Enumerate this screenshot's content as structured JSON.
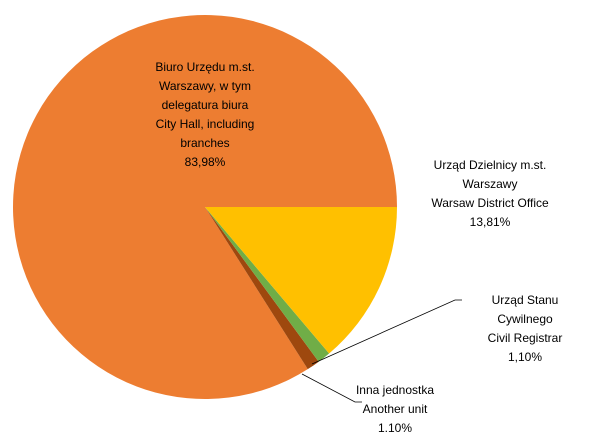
{
  "chart_data": {
    "type": "pie",
    "categories": [
      "Urząd Dzielnicy m.st.\nWarszawy\nWarsaw District Office",
      "Urząd Stanu Cywilnego\nCivil Registrar",
      "Inna jednostka\nAnother unit",
      "Biuro Urzędu m.st.\nWarszawy, w tym\ndelegatura biura\nCity Hall, including\nbranches"
    ],
    "values": [
      13.81,
      1.1,
      1.1,
      83.98
    ],
    "value_labels": [
      "13,81%",
      "1,10%",
      "1.10%",
      "83,98%"
    ],
    "colors": [
      "#FFC000",
      "#70AD47",
      "#9E480E",
      "#ED7D31"
    ]
  }
}
